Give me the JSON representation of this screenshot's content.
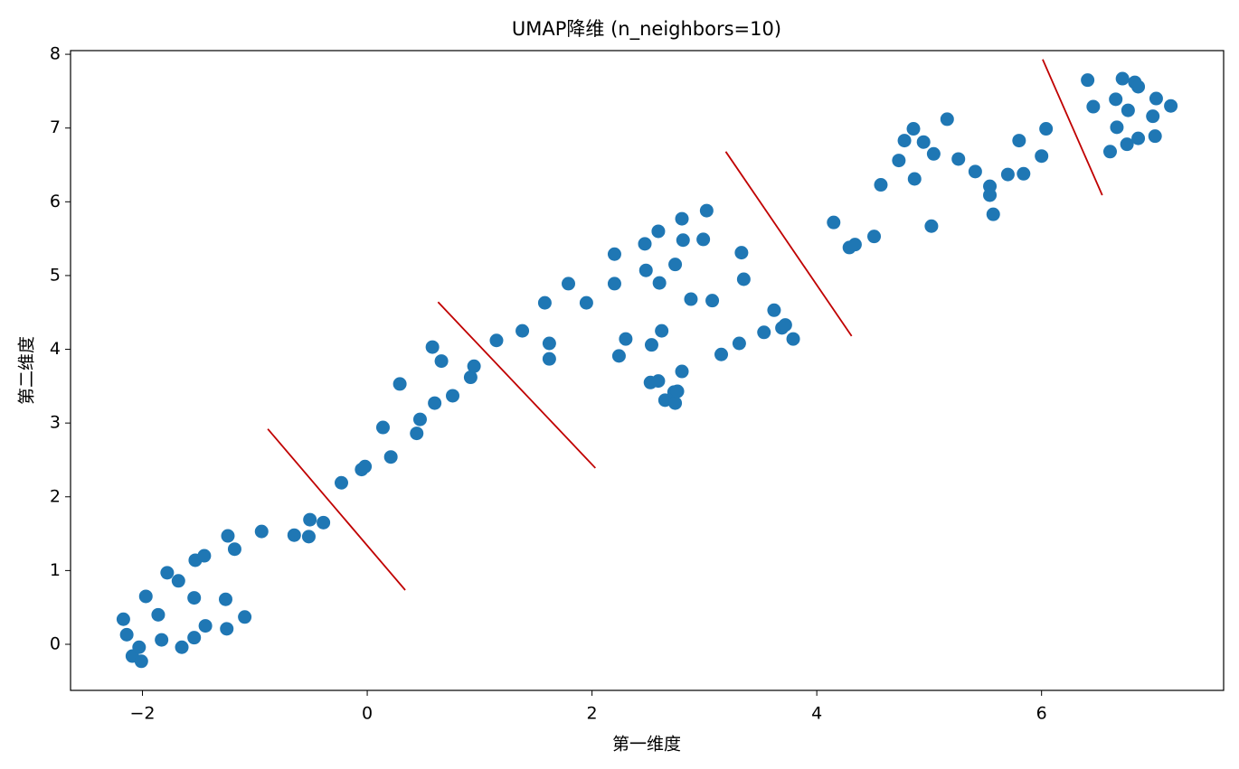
{
  "chart_data": {
    "type": "scatter",
    "title": "UMAP降维 (n_neighbors=10)",
    "xlabel": "第一维度",
    "ylabel": "第二维度",
    "color": "#1f77b4",
    "x": [
      -2.17,
      -2.14,
      -2.09,
      -2.03,
      -2.01,
      -1.97,
      -1.86,
      -1.83,
      -1.78,
      -1.68,
      -1.65,
      -1.54,
      -1.54,
      -1.53,
      -1.45,
      -1.44,
      -1.26,
      -1.25,
      -1.24,
      -1.18,
      -1.09,
      -0.94,
      -0.65,
      -0.52,
      -0.51,
      -0.39,
      -0.23,
      -0.05,
      -0.02,
      0.14,
      0.21,
      0.29,
      0.44,
      0.47,
      0.58,
      0.6,
      0.66,
      0.76,
      0.92,
      0.95,
      1.15,
      1.38,
      1.58,
      1.62,
      1.62,
      1.79,
      1.95,
      2.2,
      2.2,
      2.24,
      2.3,
      2.47,
      2.48,
      2.53,
      2.52,
      2.59,
      2.6,
      2.59,
      2.62,
      2.65,
      2.73,
      2.74,
      2.74,
      2.76,
      2.8,
      2.81,
      2.8,
      2.88,
      2.99,
      3.02,
      3.07,
      3.15,
      3.31,
      3.33,
      3.35,
      3.53,
      3.62,
      3.69,
      3.72,
      3.79,
      4.15,
      4.29,
      4.34,
      4.51,
      4.57,
      4.73,
      4.78,
      4.86,
      4.87,
      4.95,
      5.02,
      5.04,
      5.16,
      5.26,
      5.41,
      5.54,
      5.54,
      5.57,
      5.7,
      5.8,
      5.84,
      6.0,
      6.04,
      6.41,
      6.46,
      6.61,
      6.66,
      6.67,
      6.72,
      6.76,
      6.77,
      6.83,
      6.86,
      6.86,
      6.99,
      7.01,
      7.02,
      7.15
    ],
    "values": [
      0.34,
      0.13,
      -0.16,
      -0.04,
      -0.23,
      0.65,
      0.4,
      0.06,
      0.97,
      0.86,
      -0.04,
      0.63,
      0.09,
      1.14,
      1.2,
      0.25,
      0.61,
      0.21,
      1.47,
      1.29,
      0.37,
      1.53,
      1.48,
      1.46,
      1.69,
      1.65,
      2.19,
      2.37,
      2.41,
      2.94,
      2.54,
      3.53,
      2.86,
      3.05,
      4.03,
      3.27,
      3.84,
      3.37,
      3.62,
      3.77,
      4.12,
      4.25,
      4.63,
      4.08,
      3.87,
      4.89,
      4.63,
      5.29,
      4.89,
      3.91,
      4.14,
      5.43,
      5.07,
      4.06,
      3.55,
      5.6,
      4.9,
      3.57,
      4.25,
      3.31,
      3.42,
      3.27,
      5.15,
      3.43,
      5.77,
      5.48,
      3.7,
      4.68,
      5.49,
      5.88,
      4.66,
      3.93,
      4.08,
      5.31,
      4.95,
      4.23,
      4.53,
      4.29,
      4.33,
      4.14,
      5.72,
      5.38,
      5.42,
      5.53,
      6.23,
      6.56,
      6.83,
      6.99,
      6.31,
      6.81,
      5.67,
      6.65,
      7.12,
      6.58,
      6.41,
      6.21,
      6.09,
      5.83,
      6.37,
      6.83,
      6.38,
      6.62,
      6.99,
      7.65,
      7.29,
      6.68,
      7.39,
      7.01,
      7.67,
      6.78,
      7.24,
      7.62,
      7.56,
      6.86,
      7.16,
      6.89,
      7.4,
      7.3
    ],
    "lines_color": "#c00000",
    "lines": [
      {
        "x": [
          -0.885,
          0.338
        ],
        "y": [
          2.92,
          0.735
        ]
      },
      {
        "x": [
          0.63,
          2.03
        ],
        "y": [
          4.64,
          2.39
        ]
      },
      {
        "x": [
          3.19,
          4.31
        ],
        "y": [
          6.68,
          4.18
        ]
      },
      {
        "x": [
          6.01,
          6.54
        ],
        "y": [
          7.93,
          6.09
        ]
      }
    ],
    "xlim": [
      -2.64,
      7.62
    ],
    "ylim": [
      -0.625,
      8.05
    ],
    "xticks": [
      {
        "value": -2,
        "label": "−2"
      },
      0,
      2,
      4,
      6
    ],
    "yticks": [
      0,
      1,
      2,
      3,
      4,
      5,
      6,
      7,
      8
    ],
    "grid": false
  }
}
